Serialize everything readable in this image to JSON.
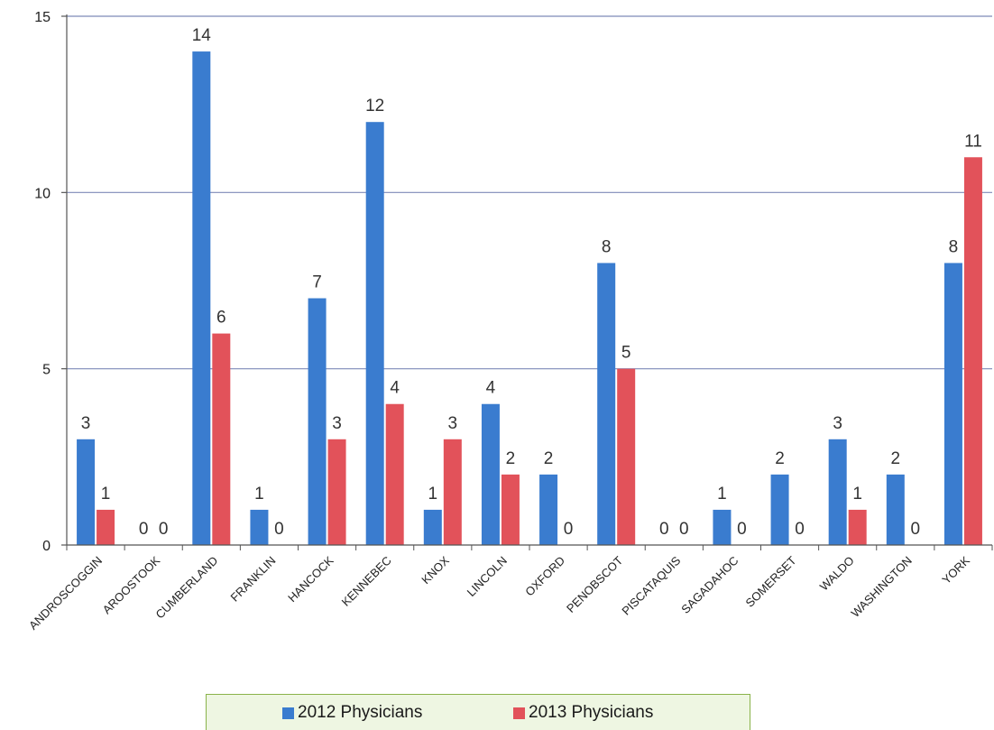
{
  "chart_data": {
    "type": "bar",
    "title": "",
    "xlabel": "",
    "ylabel": "",
    "ylim": [
      0,
      15
    ],
    "yticks": [
      0,
      5,
      10,
      15
    ],
    "grid": true,
    "legend_position": "bottom",
    "categories": [
      "ANDROSCOGGIN",
      "AROOSTOOK",
      "CUMBERLAND",
      "FRANKLIN",
      "HANCOCK",
      "KENNEBEC",
      "KNOX",
      "LINCOLN",
      "OXFORD",
      "PENOBSCOT",
      "PISCATAQUIS",
      "SAGADAHOC",
      "SOMERSET",
      "WALDO",
      "WASHINGTON",
      "YORK"
    ],
    "series": [
      {
        "name": "2012 Physicians",
        "color": "#3a7ccf",
        "values": [
          3,
          0,
          14,
          1,
          7,
          12,
          1,
          4,
          2,
          8,
          0,
          1,
          2,
          3,
          2,
          8
        ]
      },
      {
        "name": "2013 Physicians",
        "color": "#e2525a",
        "values": [
          1,
          0,
          6,
          0,
          3,
          4,
          3,
          2,
          0,
          5,
          0,
          0,
          0,
          1,
          0,
          11
        ]
      }
    ]
  }
}
